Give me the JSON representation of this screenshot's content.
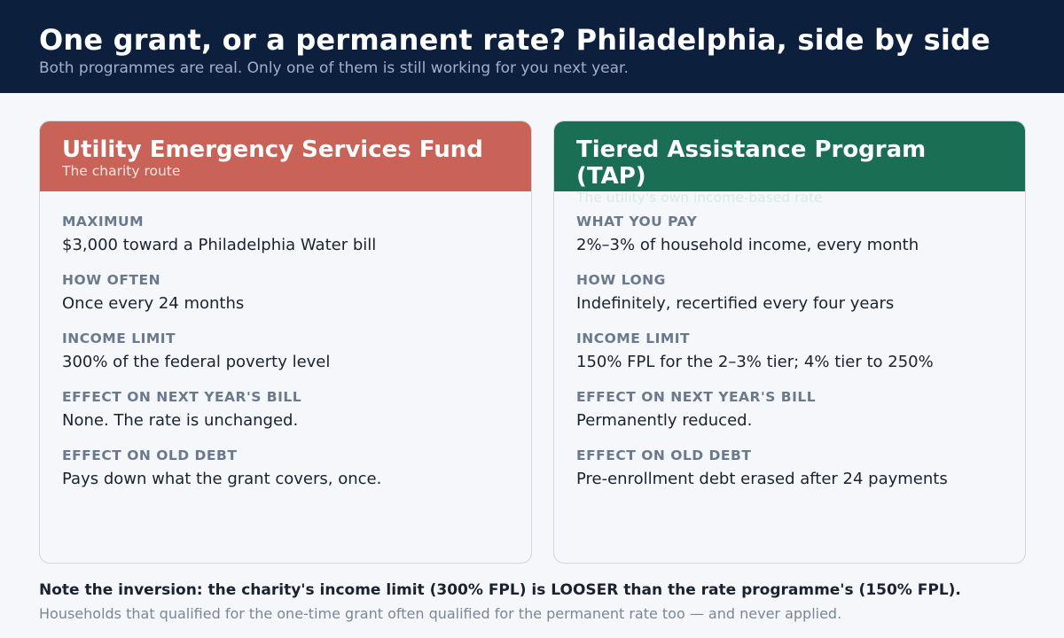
{
  "header": {
    "title": "One grant, or a permanent rate? Philadelphia, side by side",
    "subtitle": "Both programmes are real. Only one of them is still working for you next year."
  },
  "colors": {
    "header_bg": "#0c1f3d",
    "charity_accent": "#c96357",
    "tap_accent": "#1a6e54"
  },
  "cards": {
    "charity": {
      "title": "Utility Emergency Services Fund",
      "tagline": "The charity route",
      "rows": [
        {
          "label": "MAXIMUM",
          "value": "$3,000 toward a Philadelphia Water bill"
        },
        {
          "label": "HOW OFTEN",
          "value": "Once every 24 months"
        },
        {
          "label": "INCOME LIMIT",
          "value": "300% of the federal poverty level"
        },
        {
          "label": "EFFECT ON NEXT YEAR'S BILL",
          "value": "None. The rate is unchanged."
        },
        {
          "label": "EFFECT ON OLD DEBT",
          "value": "Pays down what the grant covers, once."
        }
      ]
    },
    "tap": {
      "title": "Tiered Assistance Program (TAP)",
      "tagline": "The utility's own income-based rate",
      "rows": [
        {
          "label": "WHAT YOU PAY",
          "value": "2%–3% of household income, every month"
        },
        {
          "label": "HOW LONG",
          "value": "Indefinitely, recertified every four years"
        },
        {
          "label": "INCOME LIMIT",
          "value": "150% FPL for the 2–3% tier; 4% tier to 250%"
        },
        {
          "label": "EFFECT ON NEXT YEAR'S BILL",
          "value": "Permanently reduced."
        },
        {
          "label": "EFFECT ON OLD DEBT",
          "value": "Pre-enrollment debt erased after 24 payments"
        }
      ]
    }
  },
  "note": {
    "emphasis": "Note the inversion: the charity's income limit (300% FPL) is LOOSER than the rate programme's (150% FPL).",
    "detail": "Households that qualified for the one-time grant often qualified for the permanent rate too — and never applied."
  }
}
